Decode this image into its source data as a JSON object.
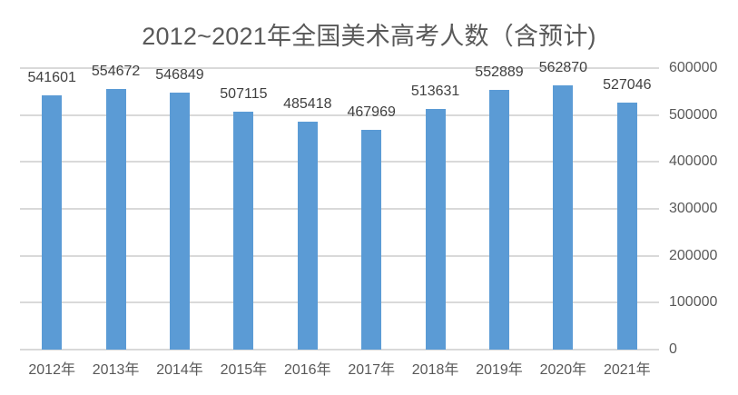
{
  "chart_data": {
    "type": "bar",
    "title": "2012~2021年全国美术高考人数（含预计)",
    "xlabel": "",
    "ylabel": "",
    "categories": [
      "2012年",
      "2013年",
      "2014年",
      "2015年",
      "2016年",
      "2017年",
      "2018年",
      "2019年",
      "2020年",
      "2021年"
    ],
    "values": [
      541601,
      554672,
      546849,
      507115,
      485418,
      467969,
      513631,
      552889,
      562870,
      527046
    ],
    "data_labels": [
      "541601",
      "554672",
      "546849",
      "507115",
      "485418",
      "467969",
      "513631",
      "552889",
      "562870",
      "527046"
    ],
    "ylim": [
      0,
      600000
    ],
    "yticks": [
      "0",
      "100000",
      "200000",
      "300000",
      "400000",
      "500000",
      "600000"
    ],
    "ytick_values": [
      0,
      100000,
      200000,
      300000,
      400000,
      500000,
      600000
    ],
    "y_axis_position": "right",
    "grid": true,
    "legend": null,
    "bar_color": "#5b9bd5"
  }
}
